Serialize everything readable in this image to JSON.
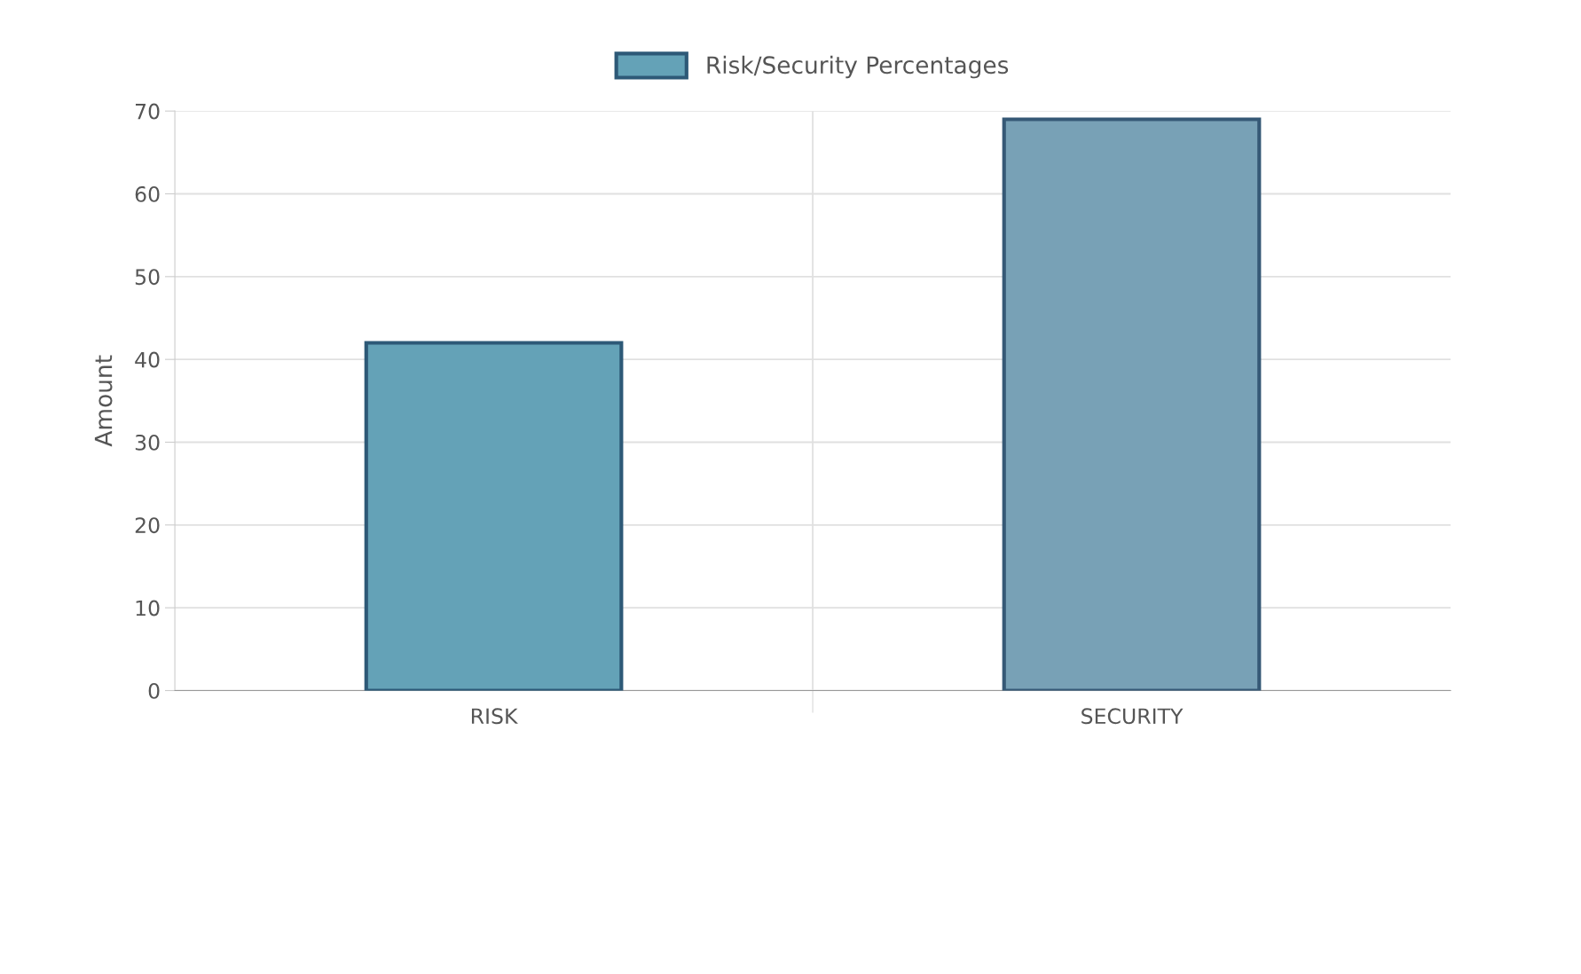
{
  "chart_data": {
    "type": "bar",
    "ylabel": "Amount",
    "categories": [
      "RISK",
      "SECURITY"
    ],
    "series": [
      {
        "name": "Risk/Security Percentages",
        "color": "#64a2b7",
        "colors": [
          "#64a2b7",
          "#78a1b6"
        ],
        "values": [
          42,
          69
        ]
      }
    ],
    "ylim": [
      0,
      70
    ],
    "yticks": [
      0,
      10,
      20,
      30,
      40,
      50,
      60,
      70
    ],
    "grid": true,
    "legend": "top"
  }
}
